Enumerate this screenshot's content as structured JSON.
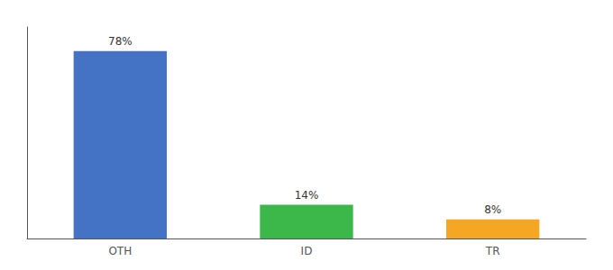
{
  "chart_data": {
    "type": "bar",
    "categories": [
      "OTH",
      "ID",
      "TR"
    ],
    "values": [
      78,
      14,
      8
    ],
    "value_labels": [
      "78%",
      "14%",
      "8%"
    ],
    "colors": [
      "#4472c4",
      "#3cb84a",
      "#f5a623"
    ],
    "ylim": [
      0,
      88
    ],
    "grid": false,
    "data_labels": true,
    "tick_labels": "x"
  }
}
